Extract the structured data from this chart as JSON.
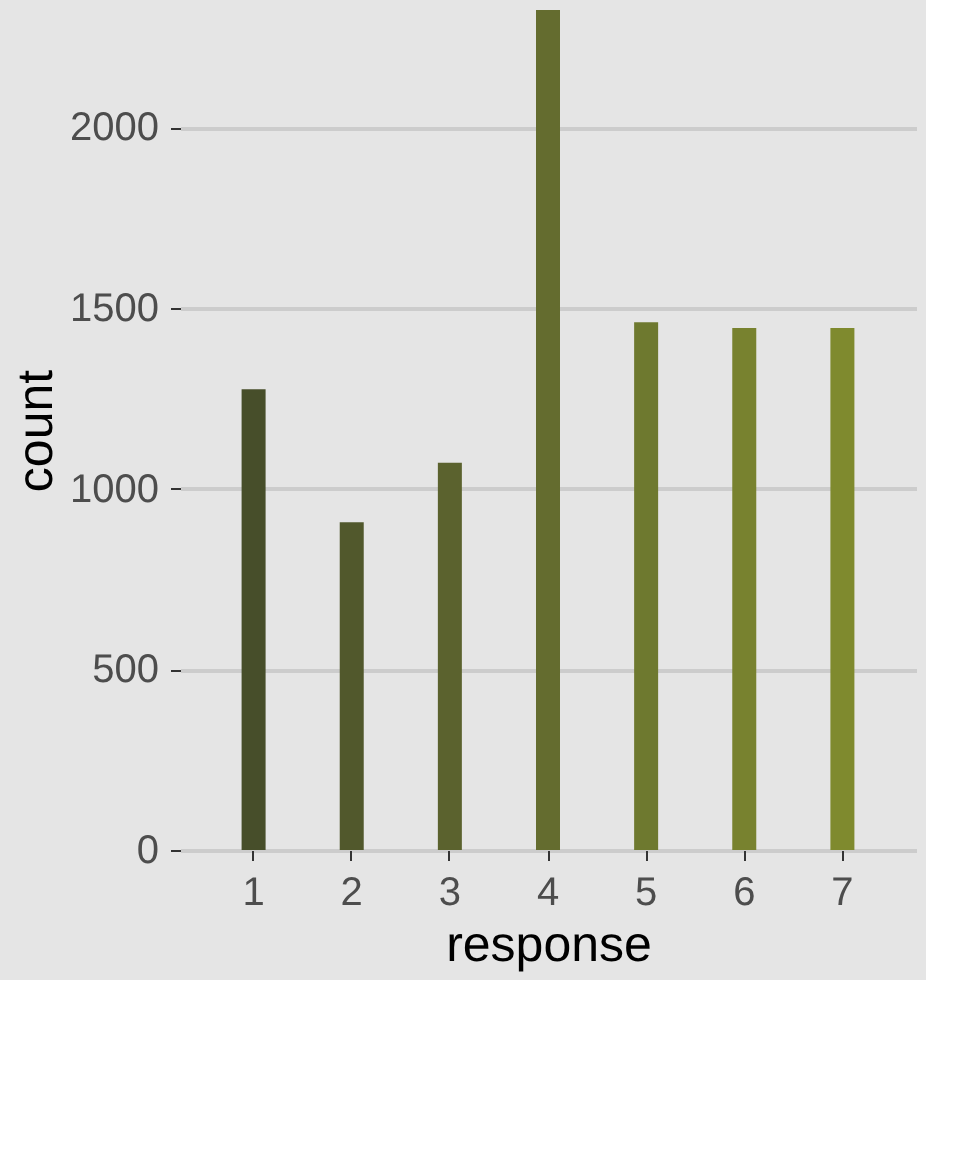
{
  "chart_data": {
    "type": "bar",
    "xlabel": "response",
    "ylabel": "count",
    "categories": [
      "1",
      "2",
      "3",
      "4",
      "5",
      "6",
      "7"
    ],
    "values": [
      1275,
      907,
      1072,
      2325,
      1461,
      1445,
      1445
    ],
    "colors": [
      "#474e2a",
      "#51582c",
      "#5b622e",
      "#646c2f",
      "#6e792f",
      "#78822f",
      "#7f8a2e"
    ],
    "ylim": [
      0,
      2325
    ],
    "yticks": [
      0,
      500,
      1000,
      1500,
      2000
    ],
    "grid": "y"
  }
}
